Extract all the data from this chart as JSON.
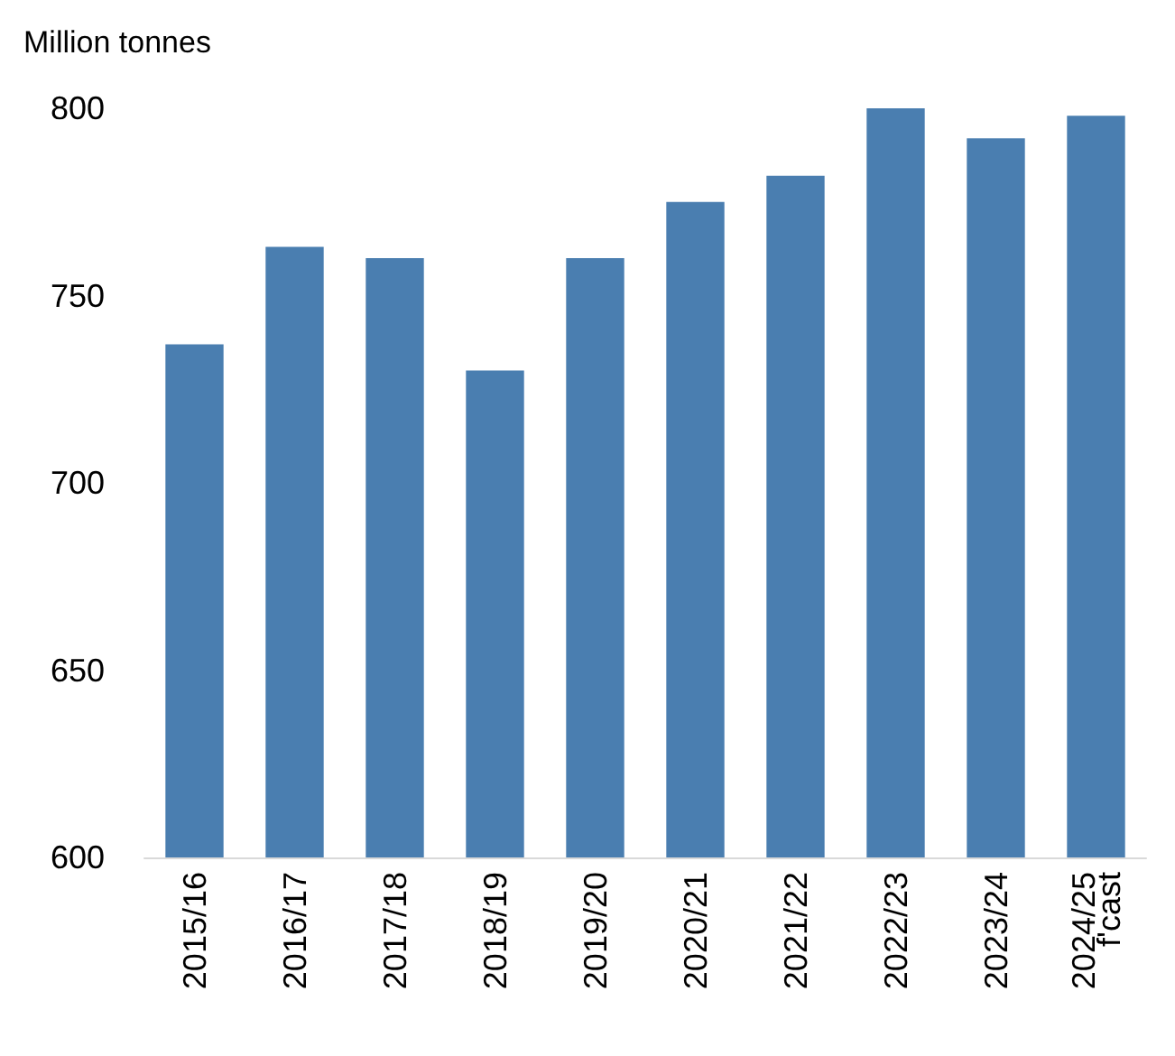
{
  "chart_data": {
    "type": "bar",
    "ylabel": "Million tonnes",
    "categories": [
      "2015/16",
      "2016/17",
      "2017/18",
      "2018/19",
      "2019/20",
      "2020/21",
      "2021/22",
      "2022/23",
      "2023/24",
      "2024/25\nf'cast"
    ],
    "values": [
      737,
      763,
      760,
      730,
      760,
      775,
      782,
      800,
      792,
      798
    ],
    "color": "#4a7eb0",
    "ylim": [
      600,
      800
    ],
    "yticks": [
      600,
      650,
      700,
      750,
      800
    ],
    "grid": false
  }
}
